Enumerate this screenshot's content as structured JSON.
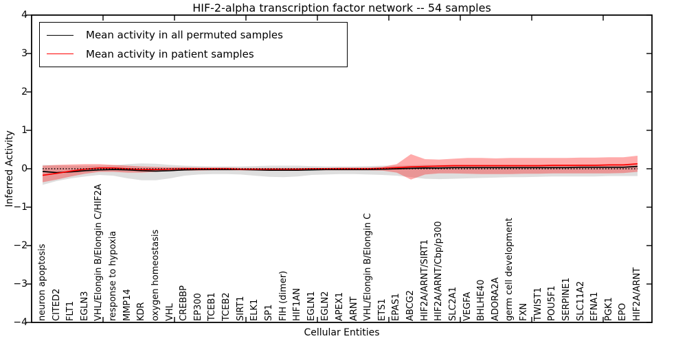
{
  "chart_data": {
    "type": "line",
    "title": "HIF-2-alpha transcription factor network -- 54 samples",
    "xlabel": "Cellular Entities",
    "ylabel": "Inferred Activity",
    "ylim": [
      -4,
      4
    ],
    "grid": false,
    "legend_position": "upper left",
    "axis_color": "#000000",
    "yticks": {
      "values": [
        4,
        3,
        2,
        1,
        0,
        -1,
        -2,
        -3,
        -4
      ],
      "labels": [
        "4",
        "3",
        "2",
        "1",
        "0",
        "−1",
        "−2",
        "−3",
        "−4"
      ]
    },
    "zero_line": {
      "value": 0,
      "style": "dotted",
      "color": "#000000"
    },
    "categories": [
      "neuron apoptosis",
      "CITED2",
      "FLT1",
      "EGLN3",
      "VHL/Elongin B/Elongin C/HIF2A",
      "response to hypoxia",
      "MMP14",
      "KDR",
      "oxygen homeostasis",
      "VHL",
      "CREBBP",
      "EP300",
      "TCEB1",
      "TCEB2",
      "SIRT1",
      "ELK1",
      "SP1",
      "FIH (dimer)",
      "HIF1AN",
      "EGLN1",
      "EGLN2",
      "APEX1",
      "ARNT",
      "VHL/Elongin B/Elongin C",
      "ETS1",
      "EPAS1",
      "ABCG2",
      "HIF2A/ARNT/SIRT1",
      "HIF2A/ARNT/Cbp/p300",
      "SLC2A1",
      "VEGFA",
      "BHLHE40",
      "ADORA2A",
      "germ cell development",
      "FXN",
      "TWIST1",
      "POU5F1",
      "SERPINE1",
      "SLC11A2",
      "EFNA1",
      "PGK1",
      "EPO",
      "HIF2A/ARNT"
    ],
    "series": [
      {
        "name": "Mean activity in all permuted samples",
        "color": "#000000",
        "values": [
          -0.07,
          -0.1,
          -0.08,
          -0.05,
          -0.03,
          -0.02,
          -0.03,
          -0.05,
          -0.06,
          -0.05,
          -0.03,
          -0.02,
          -0.02,
          -0.02,
          -0.02,
          -0.03,
          -0.04,
          -0.04,
          -0.04,
          -0.03,
          -0.02,
          -0.02,
          -0.02,
          -0.02,
          -0.01,
          0.0,
          0.01,
          0.02,
          0.02,
          0.03,
          0.03,
          0.03,
          0.03,
          0.03,
          0.03,
          0.03,
          0.03,
          0.03,
          0.04,
          0.04,
          0.04,
          0.04,
          0.06
        ]
      },
      {
        "name": "Mean activity in patient samples",
        "color": "#ff0000",
        "values": [
          -0.17,
          -0.12,
          -0.06,
          -0.01,
          0.02,
          0.02,
          0.0,
          -0.02,
          -0.02,
          -0.01,
          0.0,
          0.0,
          0.0,
          0.0,
          -0.01,
          -0.01,
          -0.01,
          -0.01,
          -0.01,
          0.0,
          0.0,
          0.0,
          0.0,
          0.0,
          0.01,
          0.03,
          0.05,
          0.06,
          0.07,
          0.08,
          0.08,
          0.08,
          0.08,
          0.08,
          0.08,
          0.08,
          0.09,
          0.09,
          0.09,
          0.09,
          0.1,
          0.1,
          0.13
        ]
      }
    ],
    "bands": [
      {
        "name": "permuted samples activity spread",
        "color": "#999999",
        "opacity": 0.32,
        "upper": [
          0.1,
          0.09,
          0.08,
          0.08,
          0.08,
          0.09,
          0.12,
          0.14,
          0.13,
          0.1,
          0.08,
          0.07,
          0.06,
          0.06,
          0.06,
          0.07,
          0.08,
          0.08,
          0.08,
          0.07,
          0.06,
          0.06,
          0.06,
          0.07,
          0.08,
          0.08,
          0.09,
          0.1,
          0.1,
          0.1,
          0.1,
          0.1,
          0.1,
          0.1,
          0.1,
          0.1,
          0.1,
          0.1,
          0.11,
          0.11,
          0.11,
          0.11,
          0.12
        ],
        "lower": [
          -0.42,
          -0.32,
          -0.25,
          -0.2,
          -0.16,
          -0.18,
          -0.25,
          -0.3,
          -0.3,
          -0.25,
          -0.18,
          -0.15,
          -0.14,
          -0.14,
          -0.15,
          -0.18,
          -0.21,
          -0.22,
          -0.2,
          -0.16,
          -0.15,
          -0.14,
          -0.14,
          -0.15,
          -0.16,
          -0.18,
          -0.22,
          -0.26,
          -0.27,
          -0.26,
          -0.25,
          -0.24,
          -0.23,
          -0.22,
          -0.22,
          -0.21,
          -0.2,
          -0.2,
          -0.2,
          -0.2,
          -0.19,
          -0.19,
          -0.19
        ]
      },
      {
        "name": "patient samples activity spread",
        "color": "#ff0000",
        "opacity": 0.33,
        "upper": [
          0.08,
          0.1,
          0.11,
          0.12,
          0.12,
          0.1,
          0.08,
          0.06,
          0.05,
          0.04,
          0.04,
          0.03,
          0.03,
          0.03,
          0.02,
          0.02,
          0.02,
          0.02,
          0.02,
          0.02,
          0.02,
          0.03,
          0.03,
          0.03,
          0.05,
          0.12,
          0.38,
          0.25,
          0.24,
          0.26,
          0.28,
          0.28,
          0.27,
          0.28,
          0.28,
          0.28,
          0.28,
          0.28,
          0.29,
          0.29,
          0.3,
          0.3,
          0.34
        ],
        "lower": [
          -0.35,
          -0.28,
          -0.2,
          -0.13,
          -0.08,
          -0.08,
          -0.1,
          -0.1,
          -0.08,
          -0.06,
          -0.05,
          -0.05,
          -0.04,
          -0.04,
          -0.04,
          -0.04,
          -0.05,
          -0.05,
          -0.05,
          -0.04,
          -0.04,
          -0.04,
          -0.04,
          -0.04,
          -0.05,
          -0.1,
          -0.28,
          -0.15,
          -0.12,
          -0.12,
          -0.13,
          -0.14,
          -0.14,
          -0.14,
          -0.13,
          -0.13,
          -0.12,
          -0.12,
          -0.12,
          -0.12,
          -0.12,
          -0.11,
          -0.08
        ]
      }
    ]
  }
}
